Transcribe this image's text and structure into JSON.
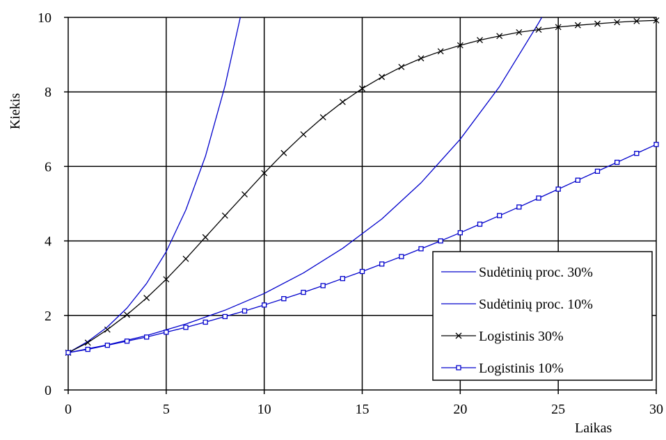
{
  "chart_data": {
    "type": "line",
    "title": "",
    "xlabel": "Laikas",
    "ylabel": "Kiekis",
    "xlim": [
      0,
      30
    ],
    "ylim": [
      0,
      10
    ],
    "x_ticks": [
      0,
      5,
      10,
      15,
      20,
      25,
      30
    ],
    "y_ticks": [
      0,
      2,
      4,
      6,
      8,
      10
    ],
    "grid": true,
    "legend_position": "bottom-right",
    "series": [
      {
        "name": "Sudėtinių proc. 30%",
        "color": "#0000cc",
        "marker": "none",
        "x": [
          0,
          1,
          2,
          3,
          4,
          5,
          6,
          7,
          8,
          8.78
        ],
        "y": [
          1.0,
          1.3,
          1.69,
          2.2,
          2.86,
          3.71,
          4.83,
          6.27,
          8.16,
          10.0
        ]
      },
      {
        "name": "Sudėtinių proc. 10%",
        "color": "#0000cc",
        "marker": "none",
        "x": [
          0,
          2,
          4,
          6,
          8,
          10,
          12,
          14,
          16,
          18,
          20,
          22,
          24,
          24.16
        ],
        "y": [
          1.0,
          1.21,
          1.46,
          1.77,
          2.14,
          2.59,
          3.14,
          3.8,
          4.59,
          5.56,
          6.73,
          8.14,
          9.85,
          10.0
        ]
      },
      {
        "name": "Logistinis 30%",
        "color": "#000000",
        "marker": "x",
        "x": [
          0,
          1,
          2,
          3,
          4,
          5,
          6,
          7,
          8,
          9,
          10,
          11,
          12,
          13,
          14,
          15,
          16,
          17,
          18,
          19,
          20,
          21,
          22,
          23,
          24,
          25,
          26,
          27,
          28,
          29,
          30
        ],
        "y": [
          1.0,
          1.27,
          1.62,
          2.02,
          2.47,
          2.97,
          3.52,
          4.1,
          4.68,
          5.25,
          5.82,
          6.36,
          6.86,
          7.32,
          7.73,
          8.09,
          8.4,
          8.67,
          8.9,
          9.09,
          9.25,
          9.39,
          9.5,
          9.6,
          9.67,
          9.74,
          9.79,
          9.83,
          9.87,
          9.9,
          9.92
        ]
      },
      {
        "name": "Logistinis 10%",
        "color": "#0000cc",
        "marker": "o",
        "x": [
          0,
          1,
          2,
          3,
          4,
          5,
          6,
          7,
          8,
          9,
          10,
          11,
          12,
          13,
          14,
          15,
          16,
          17,
          18,
          19,
          20,
          21,
          22,
          23,
          24,
          25,
          26,
          27,
          28,
          29,
          30
        ],
        "y": [
          1.0,
          1.09,
          1.2,
          1.31,
          1.42,
          1.55,
          1.68,
          1.82,
          1.97,
          2.12,
          2.28,
          2.45,
          2.62,
          2.8,
          2.99,
          3.18,
          3.38,
          3.58,
          3.79,
          4.0,
          4.22,
          4.45,
          4.68,
          4.91,
          5.15,
          5.39,
          5.63,
          5.87,
          6.11,
          6.35,
          6.59
        ]
      }
    ]
  }
}
